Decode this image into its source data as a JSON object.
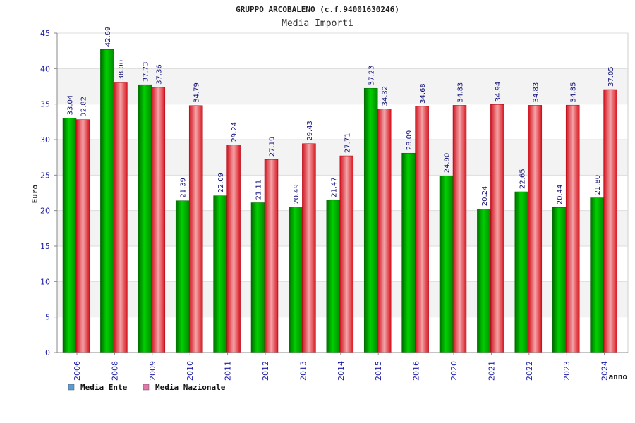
{
  "chart_data": {
    "type": "bar",
    "title": "GRUPPO ARCOBALENO (c.f.94001630246)",
    "subtitle": "Media Importi",
    "xlabel": "anno",
    "ylabel": "Euro",
    "ylim": [
      0,
      45
    ],
    "yticks": [
      0,
      5,
      10,
      15,
      20,
      25,
      30,
      35,
      40,
      45
    ],
    "grid": true,
    "legend_position": "bottom-left",
    "categories": [
      "2006",
      "2008",
      "2009",
      "2010",
      "2011",
      "2012",
      "2013",
      "2014",
      "2015",
      "2016",
      "2020",
      "2021",
      "2022",
      "2023",
      "2024"
    ],
    "series": [
      {
        "name": "Media Ente",
        "color": "#00b400",
        "values": [
          33.04,
          42.69,
          37.73,
          21.39,
          22.09,
          21.11,
          20.49,
          21.47,
          37.23,
          28.09,
          24.9,
          20.24,
          22.65,
          20.44,
          21.8
        ],
        "labels": [
          "33.04",
          "42.69",
          "37.73",
          "21.39",
          "22.09",
          "21.11",
          "20.49",
          "21.47",
          "37.23",
          "28.09",
          "24.90",
          "20.24",
          "22.65",
          "20.44",
          "21.80"
        ]
      },
      {
        "name": "Media Nazionale",
        "color": "#e8202a",
        "values": [
          32.82,
          38.0,
          37.36,
          34.79,
          29.24,
          27.19,
          29.43,
          27.71,
          34.32,
          34.68,
          34.83,
          34.94,
          34.83,
          34.85,
          37.05
        ],
        "labels": [
          "32.82",
          "38.00",
          "37.36",
          "34.79",
          "29.24",
          "27.19",
          "29.43",
          "27.71",
          "34.32",
          "34.68",
          "34.83",
          "34.94",
          "34.83",
          "34.85",
          "37.05"
        ]
      }
    ],
    "legend": [
      {
        "label": "Media Ente",
        "color": "#5b9bd5"
      },
      {
        "label": "Media Nazionale",
        "color": "#e377a8"
      }
    ]
  }
}
